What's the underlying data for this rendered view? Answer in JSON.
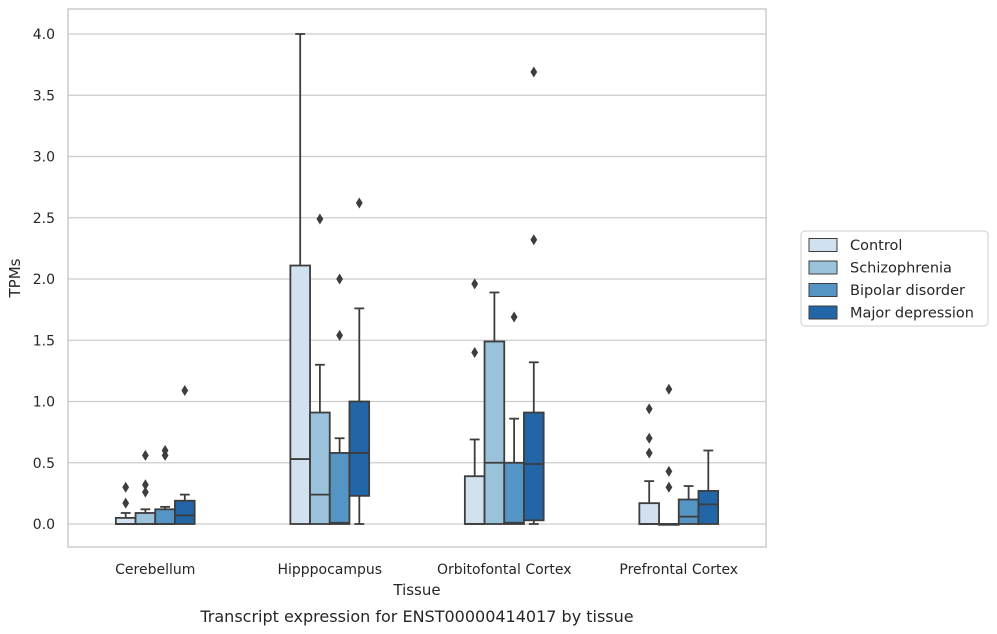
{
  "chart_data": {
    "type": "box",
    "title": "",
    "caption": "Transcript expression for ENST00000414017 by tissue",
    "xlabel": "Tissue",
    "ylabel": "TPMs",
    "ylim": [
      -0.2,
      4.2
    ],
    "yticks": [
      "0.0",
      "0.5",
      "1.0",
      "1.5",
      "2.0",
      "2.5",
      "3.0",
      "3.5",
      "4.0"
    ],
    "categories": [
      "Cerebellum",
      "Hipppocampus",
      "Orbitofontal Cortex",
      "Prefrontal Cortex"
    ],
    "grid": "horizontal",
    "legend_position": "right",
    "series": [
      {
        "name": "Control",
        "color": "#d1e1f0",
        "boxes": [
          {
            "whisker_low": 0.0,
            "q1": 0.0,
            "median": 0.0,
            "q3": 0.05,
            "whisker_high": 0.09,
            "outliers": [
              0.17,
              0.3
            ]
          },
          {
            "whisker_low": 0.0,
            "q1": 0.0,
            "median": 0.53,
            "q3": 2.11,
            "whisker_high": 4.0,
            "outliers": []
          },
          {
            "whisker_low": 0.0,
            "q1": 0.0,
            "median": 0.0,
            "q3": 0.39,
            "whisker_high": 0.69,
            "outliers": [
              1.4,
              1.96
            ]
          },
          {
            "whisker_low": 0.0,
            "q1": 0.0,
            "median": 0.0,
            "q3": 0.17,
            "whisker_high": 0.35,
            "outliers": [
              0.58,
              0.7,
              0.94
            ]
          }
        ]
      },
      {
        "name": "Schizophrenia",
        "color": "#9ac2da",
        "boxes": [
          {
            "whisker_low": 0.0,
            "q1": 0.0,
            "median": 0.0,
            "q3": 0.09,
            "whisker_high": 0.12,
            "outliers": [
              0.26,
              0.32,
              0.56
            ]
          },
          {
            "whisker_low": 0.0,
            "q1": 0.0,
            "median": 0.24,
            "q3": 0.91,
            "whisker_high": 1.3,
            "outliers": [
              2.49
            ]
          },
          {
            "whisker_low": 0.0,
            "q1": 0.0,
            "median": 0.5,
            "q3": 1.49,
            "whisker_high": 1.89,
            "outliers": []
          },
          {
            "whisker_low": 0.0,
            "q1": 0.0,
            "median": 0.0,
            "q3": 0.0,
            "whisker_high": 0.0,
            "outliers": [
              0.3,
              0.43,
              1.1
            ]
          }
        ]
      },
      {
        "name": "Bipolar disorder",
        "color": "#5495c5",
        "boxes": [
          {
            "whisker_low": 0.0,
            "q1": 0.0,
            "median": 0.0,
            "q3": 0.12,
            "whisker_high": 0.14,
            "outliers": [
              0.56,
              0.6
            ]
          },
          {
            "whisker_low": 0.0,
            "q1": 0.0,
            "median": 0.01,
            "q3": 0.58,
            "whisker_high": 0.7,
            "outliers": [
              1.54,
              2.0
            ]
          },
          {
            "whisker_low": 0.0,
            "q1": 0.0,
            "median": 0.01,
            "q3": 0.5,
            "whisker_high": 0.86,
            "outliers": [
              1.69
            ]
          },
          {
            "whisker_low": 0.0,
            "q1": 0.0,
            "median": 0.06,
            "q3": 0.2,
            "whisker_high": 0.31,
            "outliers": []
          }
        ]
      },
      {
        "name": "Major depression",
        "color": "#2366a8",
        "boxes": [
          {
            "whisker_low": 0.0,
            "q1": 0.0,
            "median": 0.07,
            "q3": 0.19,
            "whisker_high": 0.24,
            "outliers": [
              1.09
            ]
          },
          {
            "whisker_low": 0.0,
            "q1": 0.23,
            "median": 0.58,
            "q3": 1.0,
            "whisker_high": 1.76,
            "outliers": [
              2.62
            ]
          },
          {
            "whisker_low": 0.0,
            "q1": 0.03,
            "median": 0.49,
            "q3": 0.91,
            "whisker_high": 1.32,
            "outliers": [
              2.32,
              3.69
            ]
          },
          {
            "whisker_low": 0.0,
            "q1": 0.0,
            "median": 0.16,
            "q3": 0.27,
            "whisker_high": 0.6,
            "outliers": []
          }
        ]
      }
    ]
  }
}
